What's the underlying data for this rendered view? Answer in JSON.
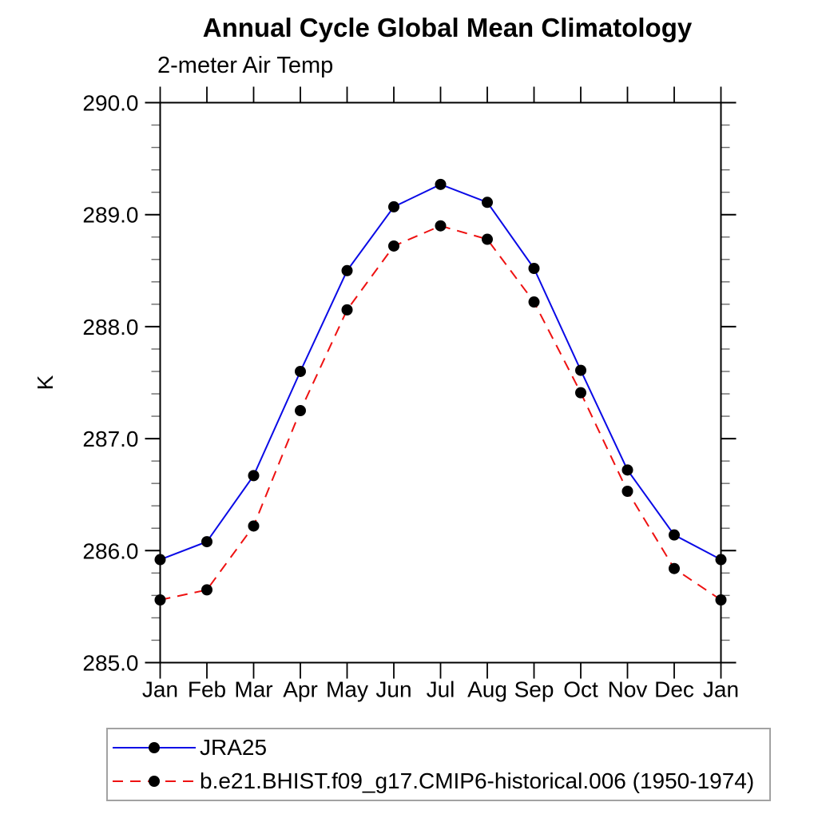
{
  "chart_data": {
    "type": "line",
    "title": "Annual Cycle Global Mean Climatology",
    "subtitle": "2-meter Air Temp",
    "ylabel": "K",
    "xlabel": "",
    "ylim": [
      285.0,
      290.0
    ],
    "ytick_step": 1.0,
    "ytick_minor_step": 0.2,
    "ytick_labels": [
      "285.0",
      "286.0",
      "287.0",
      "288.0",
      "289.0",
      "290.0"
    ],
    "categories": [
      "Jan",
      "Feb",
      "Mar",
      "Apr",
      "May",
      "Jun",
      "Jul",
      "Aug",
      "Sep",
      "Oct",
      "Nov",
      "Dec",
      "Jan"
    ],
    "grid": false,
    "legend_position": "bottom-left-box",
    "axis_color": "#000000",
    "series": [
      {
        "name": "JRA25",
        "color": "#0a0ae6",
        "style": "solid",
        "marker": "filled-circle",
        "marker_color": "#000000",
        "values": [
          285.92,
          286.08,
          286.67,
          287.6,
          288.5,
          289.07,
          289.27,
          289.11,
          288.52,
          287.61,
          286.72,
          286.14,
          285.92
        ]
      },
      {
        "name": "b.e21.BHIST.f09_g17.CMIP6-historical.006 (1950-1974)",
        "color": "#ee1111",
        "style": "dashed",
        "marker": "filled-circle",
        "marker_color": "#000000",
        "values": [
          285.56,
          285.65,
          286.22,
          287.25,
          288.15,
          288.72,
          288.9,
          288.78,
          288.22,
          287.41,
          286.53,
          285.84,
          285.56
        ]
      }
    ]
  }
}
